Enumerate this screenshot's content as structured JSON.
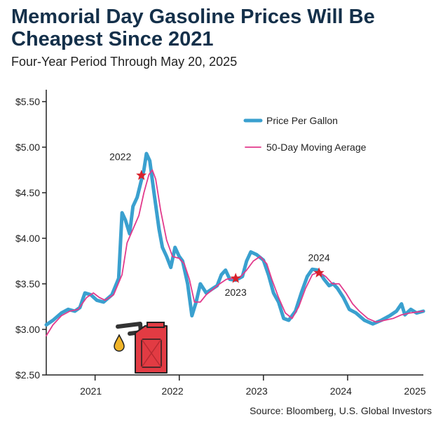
{
  "title": "Memorial Day Gasoline Prices Will Be Cheapest Since 2021",
  "subtitle": "Four-Year Period Through May 20, 2025",
  "source": "Source: Bloomberg, U.S. Global Investors",
  "chart_data": {
    "type": "line",
    "x_unit": "year (decimal)",
    "xlim": [
      2020.92,
      2025.4
    ],
    "ylim": [
      2.5,
      5.6
    ],
    "y_ticks": [
      2.5,
      3.0,
      3.5,
      4.0,
      4.5,
      5.0,
      5.5
    ],
    "y_tick_labels": [
      "$2.50",
      "$3.00",
      "$3.50",
      "$4.00",
      "$4.50",
      "$5.00",
      "$5.50"
    ],
    "x_tick_labels": [
      "2021",
      "2022",
      "2023",
      "2024",
      "2025"
    ],
    "x_tick_positions": [
      2021.5,
      2022.5,
      2023.5,
      2024.5,
      2025.4
    ],
    "grid": false,
    "legend_position": "top-right",
    "series": [
      {
        "name": "Price Per Gallon",
        "color": "#3aa0cf",
        "points": [
          [
            2020.92,
            3.05
          ],
          [
            2021.0,
            3.1
          ],
          [
            2021.1,
            3.18
          ],
          [
            2021.18,
            3.22
          ],
          [
            2021.26,
            3.2
          ],
          [
            2021.32,
            3.24
          ],
          [
            2021.38,
            3.4
          ],
          [
            2021.45,
            3.38
          ],
          [
            2021.52,
            3.32
          ],
          [
            2021.6,
            3.3
          ],
          [
            2021.7,
            3.38
          ],
          [
            2021.78,
            3.56
          ],
          [
            2021.82,
            4.28
          ],
          [
            2021.86,
            4.2
          ],
          [
            2021.91,
            4.05
          ],
          [
            2021.95,
            4.35
          ],
          [
            2022.0,
            4.45
          ],
          [
            2022.04,
            4.6
          ],
          [
            2022.08,
            4.75
          ],
          [
            2022.11,
            4.93
          ],
          [
            2022.15,
            4.85
          ],
          [
            2022.2,
            4.5
          ],
          [
            2022.26,
            4.1
          ],
          [
            2022.3,
            3.9
          ],
          [
            2022.35,
            3.8
          ],
          [
            2022.4,
            3.68
          ],
          [
            2022.45,
            3.9
          ],
          [
            2022.5,
            3.8
          ],
          [
            2022.54,
            3.75
          ],
          [
            2022.6,
            3.5
          ],
          [
            2022.65,
            3.15
          ],
          [
            2022.7,
            3.3
          ],
          [
            2022.75,
            3.5
          ],
          [
            2022.82,
            3.4
          ],
          [
            2022.9,
            3.45
          ],
          [
            2022.95,
            3.48
          ],
          [
            2023.0,
            3.6
          ],
          [
            2023.05,
            3.65
          ],
          [
            2023.1,
            3.55
          ],
          [
            2023.17,
            3.54
          ],
          [
            2023.25,
            3.58
          ],
          [
            2023.3,
            3.75
          ],
          [
            2023.35,
            3.85
          ],
          [
            2023.42,
            3.82
          ],
          [
            2023.5,
            3.76
          ],
          [
            2023.56,
            3.6
          ],
          [
            2023.62,
            3.4
          ],
          [
            2023.68,
            3.3
          ],
          [
            2023.74,
            3.12
          ],
          [
            2023.8,
            3.1
          ],
          [
            2023.88,
            3.2
          ],
          [
            2023.95,
            3.4
          ],
          [
            2024.02,
            3.58
          ],
          [
            2024.08,
            3.66
          ],
          [
            2024.15,
            3.65
          ],
          [
            2024.22,
            3.55
          ],
          [
            2024.28,
            3.48
          ],
          [
            2024.33,
            3.5
          ],
          [
            2024.38,
            3.45
          ],
          [
            2024.45,
            3.35
          ],
          [
            2024.52,
            3.22
          ],
          [
            2024.6,
            3.18
          ],
          [
            2024.7,
            3.1
          ],
          [
            2024.8,
            3.06
          ],
          [
            2024.9,
            3.1
          ],
          [
            2025.0,
            3.15
          ],
          [
            2025.08,
            3.2
          ],
          [
            2025.14,
            3.28
          ],
          [
            2025.18,
            3.16
          ],
          [
            2025.25,
            3.22
          ],
          [
            2025.32,
            3.18
          ],
          [
            2025.4,
            3.2
          ]
        ]
      },
      {
        "name": "50-Day Moving Aerage",
        "color": "#e23a8c",
        "points": [
          [
            2020.92,
            2.93
          ],
          [
            2021.0,
            3.05
          ],
          [
            2021.1,
            3.15
          ],
          [
            2021.2,
            3.2
          ],
          [
            2021.3,
            3.22
          ],
          [
            2021.4,
            3.35
          ],
          [
            2021.48,
            3.4
          ],
          [
            2021.55,
            3.35
          ],
          [
            2021.62,
            3.32
          ],
          [
            2021.72,
            3.38
          ],
          [
            2021.82,
            3.6
          ],
          [
            2021.88,
            3.95
          ],
          [
            2021.95,
            4.1
          ],
          [
            2022.02,
            4.25
          ],
          [
            2022.08,
            4.5
          ],
          [
            2022.14,
            4.7
          ],
          [
            2022.18,
            4.75
          ],
          [
            2022.22,
            4.65
          ],
          [
            2022.28,
            4.3
          ],
          [
            2022.35,
            3.98
          ],
          [
            2022.42,
            3.8
          ],
          [
            2022.5,
            3.78
          ],
          [
            2022.56,
            3.72
          ],
          [
            2022.62,
            3.55
          ],
          [
            2022.68,
            3.3
          ],
          [
            2022.75,
            3.3
          ],
          [
            2022.82,
            3.38
          ],
          [
            2022.9,
            3.44
          ],
          [
            2022.98,
            3.5
          ],
          [
            2023.06,
            3.55
          ],
          [
            2023.14,
            3.56
          ],
          [
            2023.22,
            3.57
          ],
          [
            2023.3,
            3.65
          ],
          [
            2023.38,
            3.75
          ],
          [
            2023.46,
            3.8
          ],
          [
            2023.54,
            3.72
          ],
          [
            2023.6,
            3.55
          ],
          [
            2023.68,
            3.35
          ],
          [
            2023.76,
            3.18
          ],
          [
            2023.84,
            3.12
          ],
          [
            2023.92,
            3.25
          ],
          [
            2024.0,
            3.45
          ],
          [
            2024.08,
            3.6
          ],
          [
            2024.16,
            3.63
          ],
          [
            2024.24,
            3.58
          ],
          [
            2024.32,
            3.5
          ],
          [
            2024.4,
            3.5
          ],
          [
            2024.48,
            3.4
          ],
          [
            2024.56,
            3.28
          ],
          [
            2024.64,
            3.2
          ],
          [
            2024.74,
            3.12
          ],
          [
            2024.84,
            3.08
          ],
          [
            2024.94,
            3.1
          ],
          [
            2025.04,
            3.12
          ],
          [
            2025.14,
            3.16
          ],
          [
            2025.24,
            3.18
          ],
          [
            2025.32,
            3.19
          ],
          [
            2025.4,
            3.2
          ]
        ]
      }
    ],
    "annotations": [
      {
        "label": "2022",
        "x": 2022.05,
        "y": 4.69
      },
      {
        "label": "2023",
        "x": 2023.17,
        "y": 3.56
      },
      {
        "label": "2024",
        "x": 2024.16,
        "y": 3.62
      }
    ]
  },
  "colors": {
    "star": "#d8212c",
    "can": "#e23b43",
    "drop": "#f0b429",
    "axis": "#222222"
  },
  "icons": {
    "annotation_marker": "star-icon",
    "illustration": "gas-can-icon",
    "drop": "fuel-drop-icon"
  }
}
